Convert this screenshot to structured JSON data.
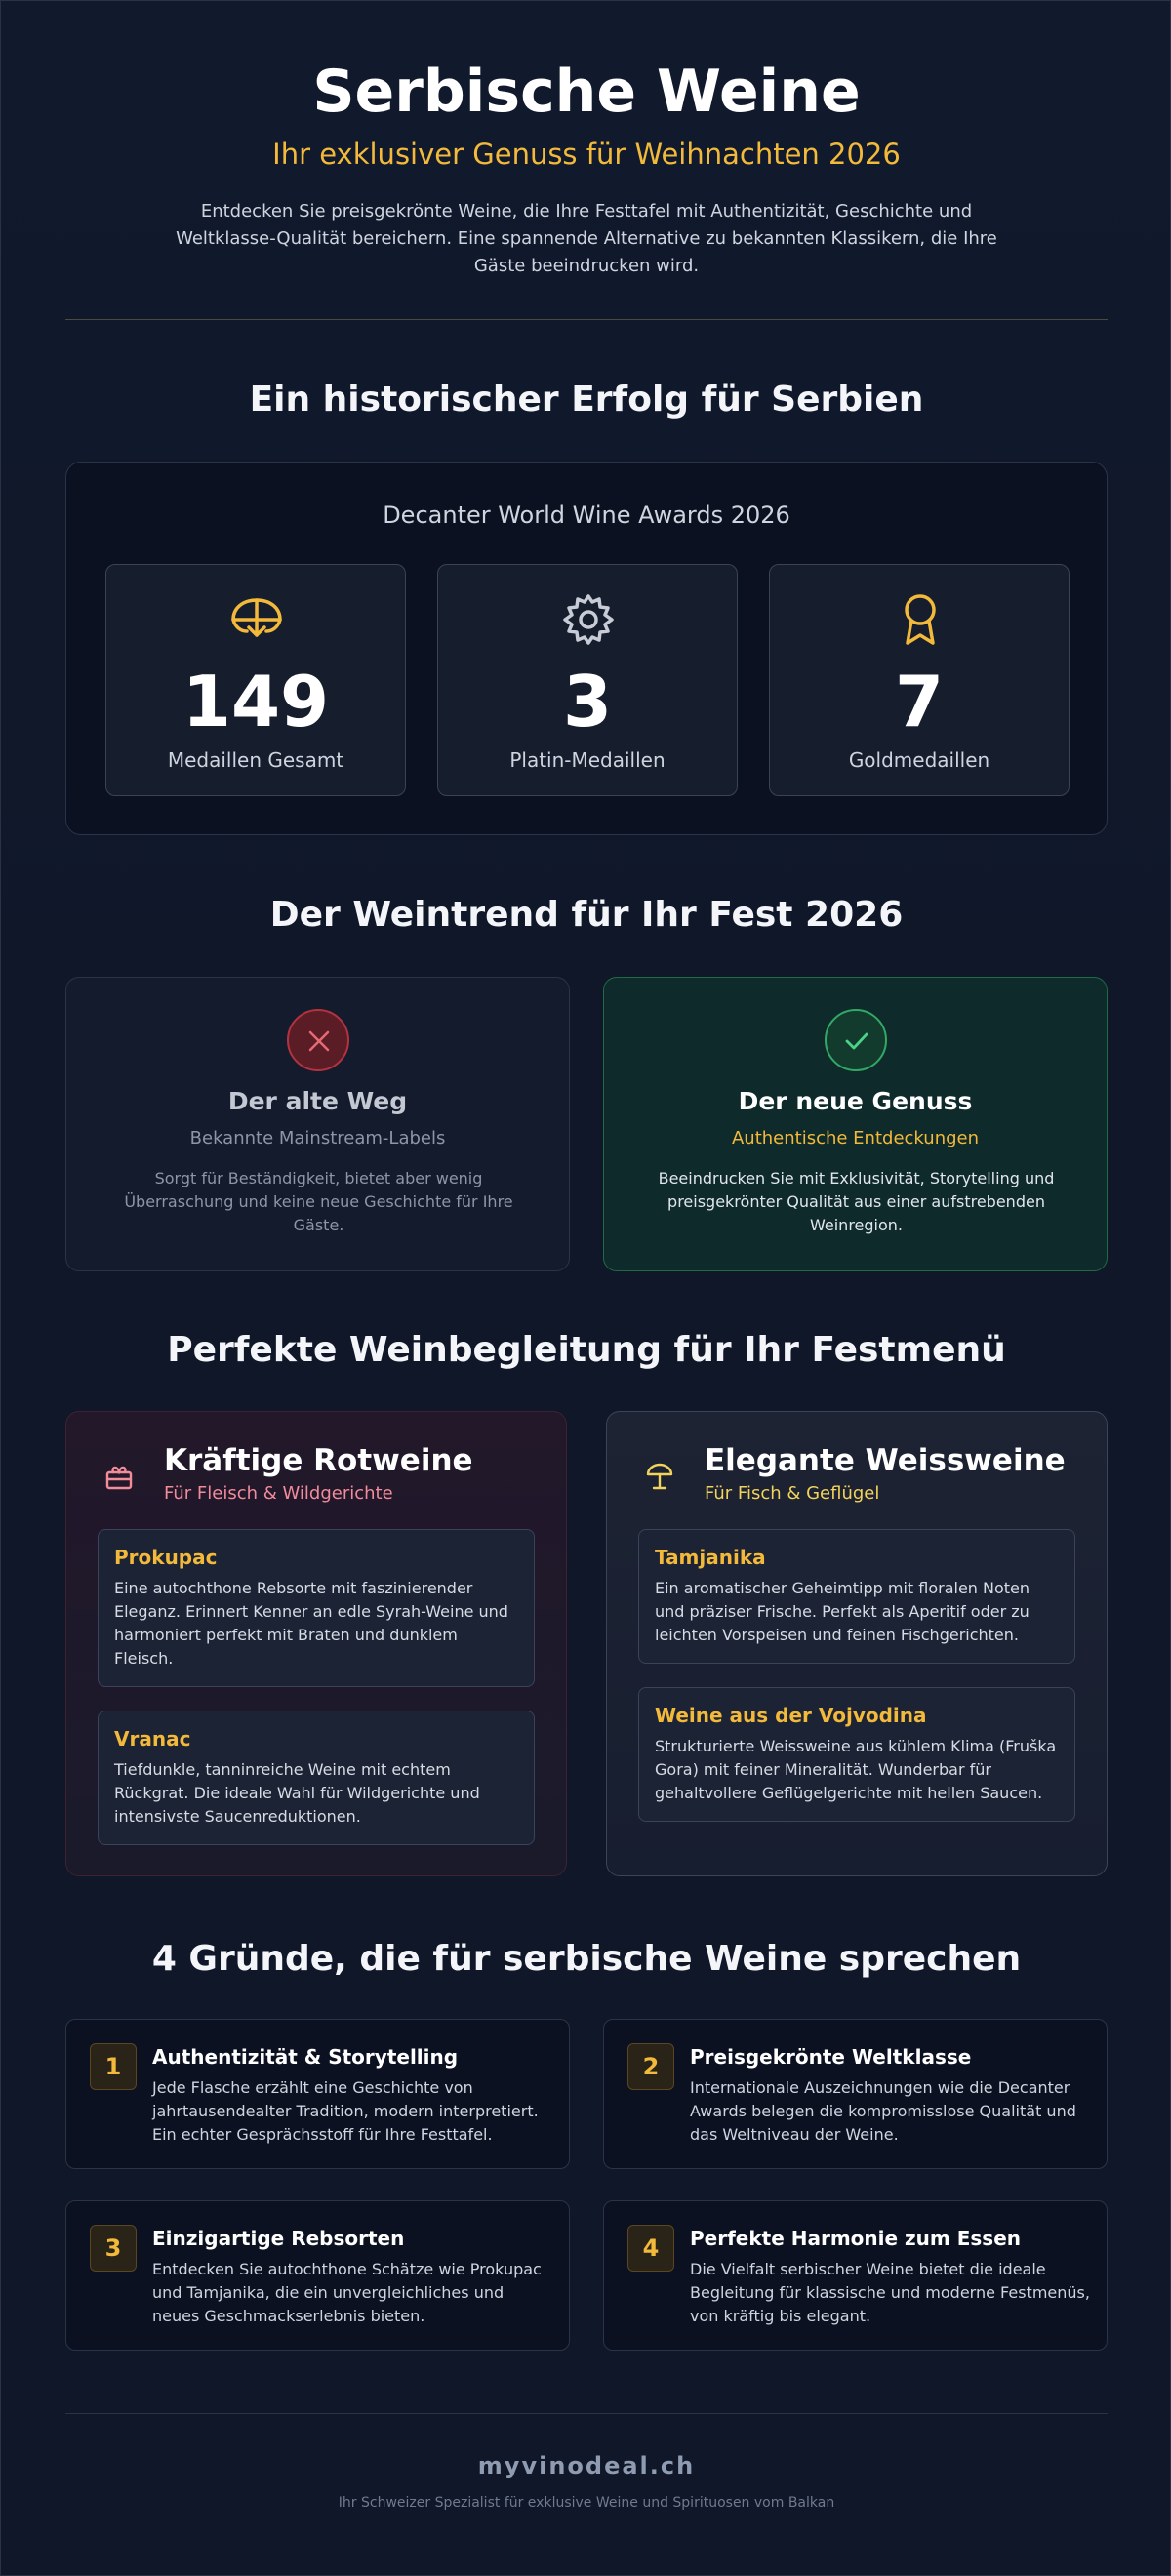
{
  "header": {
    "title": "Serbische Weine",
    "subtitle": "Ihr exklusiver Genuss für Weihnachten 2026",
    "intro": "Entdecken Sie preisgekrönte Weine, die Ihre Festtafel mit Authentizität, Geschichte und Weltklasse-Qualität bereichern. Eine spannende Alternative zu bekannten Klassikern, die Ihre Gäste beeindrucken wird."
  },
  "history": {
    "heading": "Ein historischer Erfolg für Serbien",
    "event": "Decanter World Wine Awards 2026",
    "stats": [
      {
        "value": "149",
        "label": "Medaillen Gesamt",
        "icon": "globe-pin-icon"
      },
      {
        "value": "3",
        "label": "Platin-Medaillen",
        "icon": "gear-icon"
      },
      {
        "value": "7",
        "label": "Goldmedaillen",
        "icon": "award-ribbon-icon"
      }
    ]
  },
  "trend": {
    "heading": "Der Weintrend für Ihr Fest 2026",
    "old": {
      "title": "Der alte Weg",
      "subtitle": "Bekannte Mainstream-Labels",
      "description": "Sorgt für Beständigkeit, bietet aber wenig Überraschung und keine neue Geschichte für Ihre Gäste.",
      "icon": "x-icon"
    },
    "new": {
      "title": "Der neue Genuss",
      "subtitle": "Authentische Entdeckungen",
      "description": "Beeindrucken Sie mit Exklusivität, Storytelling und preisgekrönter Qualität aus einer aufstrebenden Weinregion.",
      "icon": "check-icon"
    }
  },
  "pairing": {
    "heading": "Perfekte Weinbegleitung für Ihr Festmenü",
    "red": {
      "title": "Kräftige Rotweine",
      "subtitle": "Für Fleisch & Wildgerichte",
      "icon": "gift-icon",
      "wines": [
        {
          "name": "Prokupac",
          "description": "Eine autochthone Rebsorte mit faszinierender Eleganz. Erinnert Kenner an edle Syrah-Weine und harmoniert perfekt mit Braten und dunklem Fleisch."
        },
        {
          "name": "Vranac",
          "description": "Tiefdunkle, tanninreiche Weine mit echtem Rückgrat. Die ideale Wahl für Wildgerichte und intensivste Saucenreduktionen."
        }
      ]
    },
    "white": {
      "title": "Elegante Weissweine",
      "subtitle": "Für Fisch & Geflügel",
      "icon": "lamp-icon",
      "wines": [
        {
          "name": "Tamjanika",
          "description": "Ein aromatischer Geheimtipp mit floralen Noten und präziser Frische. Perfekt als Aperitif oder zu leichten Vorspeisen und feinen Fischgerichten."
        },
        {
          "name": "Weine aus der Vojvodina",
          "description": "Strukturierte Weissweine aus kühlem Klima (Fruška Gora) mit feiner Mineralität. Wunderbar für gehaltvollere Geflügelgerichte mit hellen Saucen."
        }
      ]
    }
  },
  "reasons": {
    "heading": "4 Gründe, die für serbische Weine sprechen",
    "items": [
      {
        "number": "1",
        "title": "Authentizität & Storytelling",
        "description": "Jede Flasche erzählt eine Geschichte von jahrtausendealter Tradition, modern interpretiert. Ein echter Gesprächsstoff für Ihre Festtafel."
      },
      {
        "number": "2",
        "title": "Preisgekrönte Weltklasse",
        "description": "Internationale Auszeichnungen wie die Decanter Awards belegen die kompromisslose Qualität und das Weltniveau der Weine."
      },
      {
        "number": "3",
        "title": "Einzigartige Rebsorten",
        "description": "Entdecken Sie autochthone Schätze wie Prokupac und Tamjanika, die ein unvergleichliches und neues Geschmackserlebnis bieten."
      },
      {
        "number": "4",
        "title": "Perfekte Harmonie zum Essen",
        "description": "Die Vielfalt serbischer Weine bietet die ideale Begleitung für klassische und moderne Festmenüs, von kräftig bis elegant."
      }
    ]
  },
  "footer": {
    "brand": "myvinodeal.ch",
    "tagline": "Ihr Schweizer Spezialist für exklusive Weine und Spirituosen vom Balkan"
  },
  "colors": {
    "background": "#0f1729",
    "accent": "#f2b93b",
    "positive": "#33a866",
    "negative": "#b2333f"
  }
}
